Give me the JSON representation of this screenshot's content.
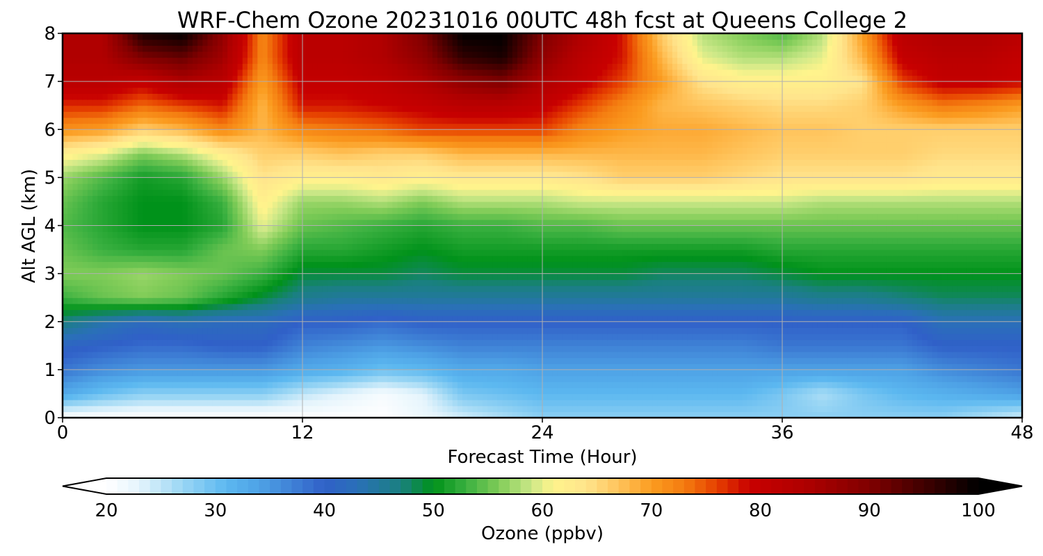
{
  "chart_data": {
    "type": "heatmap",
    "title": "WRF-Chem Ozone  20231016 00UTC 48h fcst at Queens College 2",
    "xlabel": "Forecast Time (Hour)",
    "ylabel": "Alt AGL (km)",
    "xlim": [
      0,
      48
    ],
    "ylim": [
      0,
      8
    ],
    "xticks": [
      0,
      12,
      24,
      36,
      48
    ],
    "yticks": [
      0,
      1,
      2,
      3,
      4,
      5,
      6,
      7,
      8
    ],
    "grid": true,
    "x": [
      0,
      2,
      4,
      6,
      8,
      10,
      12,
      14,
      16,
      18,
      20,
      22,
      24,
      26,
      28,
      30,
      32,
      34,
      36,
      38,
      40,
      42,
      44,
      46,
      48
    ],
    "y": [
      0,
      0.5,
      1,
      1.5,
      2,
      2.5,
      3,
      3.5,
      4,
      4.5,
      5,
      5.5,
      6,
      6.5,
      7,
      7.5,
      8
    ],
    "z": [
      [
        20,
        20,
        20,
        20,
        20,
        20,
        20,
        20,
        20,
        22,
        24,
        26,
        28,
        28,
        28,
        28,
        28,
        28,
        28,
        28,
        28,
        28,
        28,
        26,
        24
      ],
      [
        33,
        30,
        28,
        28,
        28,
        28,
        25,
        23,
        21,
        23,
        29,
        30,
        31,
        31,
        31,
        31,
        31,
        31,
        29,
        26,
        29,
        31,
        32,
        33,
        34
      ],
      [
        38,
        36,
        35,
        35,
        35,
        35,
        33,
        32,
        30,
        31,
        33,
        33,
        34,
        34,
        34,
        34,
        34,
        34,
        34,
        34,
        34,
        34,
        36,
        37,
        38
      ],
      [
        41,
        40,
        39,
        39,
        40,
        40,
        37,
        36,
        35,
        36,
        37,
        37,
        37,
        37,
        37,
        37,
        37,
        37,
        38,
        38,
        38,
        38,
        40,
        40,
        40
      ],
      [
        47,
        44,
        42,
        43,
        42,
        42,
        40,
        40,
        39,
        40,
        40,
        40,
        40,
        40,
        40,
        40,
        40,
        40,
        40,
        40,
        40,
        40,
        43,
        43,
        43
      ],
      [
        53,
        55,
        56,
        55,
        52,
        49,
        46,
        45,
        45,
        45,
        45,
        45,
        45,
        45,
        45,
        45,
        45,
        45,
        45,
        46,
        46,
        47,
        48,
        48,
        48
      ],
      [
        56,
        56,
        57,
        56,
        55,
        53,
        49,
        49,
        49,
        48,
        49,
        49,
        49,
        49,
        49,
        48,
        48,
        48,
        49,
        50,
        50,
        50,
        50,
        50,
        50
      ],
      [
        55,
        53,
        52,
        52,
        55,
        56,
        52,
        52,
        51,
        50,
        51,
        51,
        51,
        51,
        51,
        51,
        51,
        51,
        52,
        52,
        52,
        52,
        52,
        52,
        52
      ],
      [
        54,
        52,
        50,
        50,
        52,
        60,
        55,
        54,
        53,
        52,
        53,
        53,
        54,
        54,
        55,
        55,
        55,
        55,
        55,
        55,
        55,
        55,
        55,
        55,
        55
      ],
      [
        55,
        52,
        50,
        50,
        53,
        62,
        57,
        57,
        58,
        56,
        58,
        58,
        58,
        59,
        59,
        59,
        59,
        59,
        59,
        58,
        58,
        58,
        58,
        58,
        58
      ],
      [
        57,
        54,
        51,
        52,
        57,
        64,
        62,
        62,
        63,
        62,
        63,
        63,
        63,
        64,
        66,
        66,
        66,
        65,
        64,
        64,
        64,
        64,
        63,
        63,
        63
      ],
      [
        62,
        60,
        56,
        58,
        62,
        66,
        66,
        67,
        66,
        66,
        68,
        68,
        68,
        68,
        68,
        68,
        68,
        67,
        66,
        66,
        66,
        66,
        65,
        65,
        65
      ],
      [
        71,
        70,
        66,
        68,
        72,
        68,
        72,
        73,
        74,
        76,
        76,
        76,
        76,
        72,
        70,
        69,
        69,
        68,
        67,
        67,
        66,
        66,
        66,
        66,
        66
      ],
      [
        77,
        77,
        74,
        76,
        78,
        68,
        78,
        78,
        79,
        80,
        82,
        82,
        80,
        76,
        72,
        68,
        67,
        66,
        65,
        65,
        66,
        70,
        73,
        72,
        70
      ],
      [
        82,
        82,
        80,
        84,
        82,
        70,
        80,
        80,
        81,
        84,
        88,
        90,
        84,
        80,
        76,
        70,
        64,
        62,
        62,
        62,
        64,
        76,
        80,
        80,
        79
      ],
      [
        84,
        84,
        90,
        92,
        86,
        72,
        82,
        82,
        84,
        88,
        96,
        98,
        88,
        82,
        78,
        68,
        60,
        58,
        58,
        60,
        68,
        80,
        82,
        82,
        80
      ],
      [
        84,
        84,
        98,
        100,
        88,
        72,
        82,
        82,
        84,
        90,
        100,
        100,
        90,
        84,
        78,
        66,
        58,
        56,
        54,
        58,
        70,
        82,
        84,
        84,
        82
      ]
    ],
    "colorbar": {
      "label": "Ozone  (ppbv)",
      "ticks": [
        20,
        30,
        40,
        50,
        60,
        70,
        80,
        90,
        100
      ],
      "min": 20,
      "max": 100,
      "extend": "both",
      "orientation": "horizontal"
    }
  },
  "colors": {
    "stops": [
      [
        20,
        "#ffffff"
      ],
      [
        23,
        "#e4f4fc"
      ],
      [
        27,
        "#9ad6f4"
      ],
      [
        31,
        "#5cb8f0"
      ],
      [
        34,
        "#4ea2e6"
      ],
      [
        37,
        "#3f82d6"
      ],
      [
        40,
        "#3060c8"
      ],
      [
        43,
        "#2a70b8"
      ],
      [
        47,
        "#1a8080"
      ],
      [
        50,
        "#00921a"
      ],
      [
        53,
        "#3ab040"
      ],
      [
        56,
        "#80cc58"
      ],
      [
        59,
        "#cce888"
      ],
      [
        61,
        "#fff48c"
      ],
      [
        64,
        "#ffe48c"
      ],
      [
        67,
        "#ffc45c"
      ],
      [
        70,
        "#fb9c20"
      ],
      [
        73,
        "#f47c10"
      ],
      [
        76,
        "#e64000"
      ],
      [
        79,
        "#c80000"
      ],
      [
        84,
        "#b00000"
      ],
      [
        90,
        "#800000"
      ],
      [
        95,
        "#400000"
      ],
      [
        100,
        "#000000"
      ]
    ],
    "under": "#ffffff",
    "over": "#000000",
    "grid": "#b0b0b0"
  }
}
